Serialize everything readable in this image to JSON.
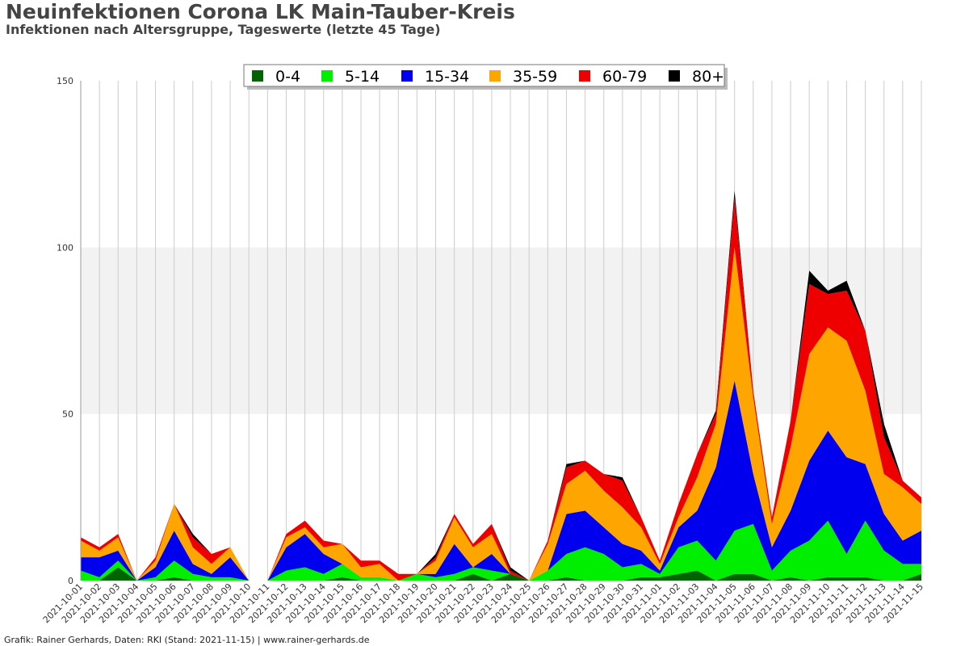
{
  "header": {
    "title": "Neuinfektionen Corona LK Main-Tauber-Kreis",
    "subtitle": "Infektionen nach Altersgruppe, Tageswerte (letzte 45 Tage)"
  },
  "footer": {
    "credit": "Grafik: Rainer Gerhards, Daten: RKI (Stand: 2021-11-15) | www.rainer-gerhards.de"
  },
  "chart_data": {
    "type": "area",
    "stacked": true,
    "ylim": [
      0,
      150
    ],
    "yticks": [
      0,
      50,
      100,
      150
    ],
    "grid": true,
    "legend_position": "top-center",
    "x": [
      "2021-10-01",
      "2021-10-02",
      "2021-10-03",
      "2021-10-04",
      "2021-10-05",
      "2021-10-06",
      "2021-10-07",
      "2021-10-08",
      "2021-10-09",
      "2021-10-10",
      "2021-10-11",
      "2021-10-12",
      "2021-10-13",
      "2021-10-14",
      "2021-10-15",
      "2021-10-16",
      "2021-10-17",
      "2021-10-18",
      "2021-10-19",
      "2021-10-20",
      "2021-10-21",
      "2021-10-22",
      "2021-10-23",
      "2021-10-24",
      "2021-10-25",
      "2021-10-26",
      "2021-10-27",
      "2021-10-28",
      "2021-10-29",
      "2021-10-30",
      "2021-10-31",
      "2021-11-01",
      "2021-11-02",
      "2021-11-03",
      "2021-11-04",
      "2021-11-05",
      "2021-11-06",
      "2021-11-07",
      "2021-11-08",
      "2021-11-09",
      "2021-11-10",
      "2021-11-11",
      "2021-11-12",
      "2021-11-13",
      "2021-11-14",
      "2021-11-15"
    ],
    "series": [
      {
        "name": "0-4",
        "color": "#006400",
        "values": [
          0,
          0,
          4,
          0,
          0,
          1,
          0,
          0,
          0,
          0,
          0,
          0,
          0,
          0,
          1,
          0,
          0,
          0,
          0,
          0,
          0,
          2,
          0,
          2,
          0,
          0,
          1,
          0,
          0,
          0,
          1,
          1,
          2,
          3,
          0,
          2,
          2,
          0,
          1,
          0,
          1,
          1,
          1,
          0,
          0,
          2
        ]
      },
      {
        "name": "5-14",
        "color": "#00ee00",
        "values": [
          3,
          1,
          2,
          0,
          1,
          5,
          2,
          1,
          1,
          0,
          0,
          3,
          4,
          2,
          4,
          1,
          1,
          0,
          2,
          1,
          2,
          2,
          3,
          0,
          0,
          3,
          7,
          10,
          8,
          4,
          4,
          1,
          8,
          9,
          6,
          13,
          15,
          3,
          8,
          12,
          17,
          7,
          17,
          9,
          5,
          3
        ]
      },
      {
        "name": "15-34",
        "color": "#0000ee",
        "values": [
          4,
          6,
          3,
          0,
          3,
          9,
          3,
          1,
          6,
          0,
          0,
          7,
          10,
          6,
          0,
          0,
          0,
          0,
          0,
          1,
          9,
          0,
          5,
          0,
          0,
          0,
          12,
          11,
          8,
          7,
          4,
          1,
          6,
          9,
          28,
          45,
          15,
          7,
          12,
          24,
          27,
          29,
          17,
          11,
          7,
          10
        ]
      },
      {
        "name": "35-59",
        "color": "#ffa500",
        "values": [
          5,
          2,
          4,
          0,
          2,
          8,
          5,
          3,
          3,
          0,
          0,
          3,
          2,
          2,
          6,
          3,
          4,
          0,
          0,
          4,
          8,
          6,
          6,
          0,
          0,
          8,
          9,
          12,
          11,
          11,
          7,
          2,
          3,
          10,
          13,
          40,
          23,
          7,
          19,
          32,
          31,
          35,
          22,
          12,
          16,
          8
        ]
      },
      {
        "name": "60-79",
        "color": "#ee0000",
        "values": [
          1,
          1,
          1,
          0,
          1,
          0,
          3,
          3,
          0,
          0,
          0,
          1,
          2,
          2,
          0,
          2,
          1,
          2,
          0,
          1,
          1,
          1,
          3,
          1,
          0,
          1,
          5,
          3,
          5,
          8,
          3,
          1,
          4,
          7,
          3,
          15,
          2,
          2,
          8,
          21,
          10,
          15,
          18,
          11,
          2,
          2
        ]
      },
      {
        "name": "80+",
        "color": "#000000",
        "values": [
          0,
          0,
          0,
          0,
          0,
          0,
          1,
          0,
          0,
          0,
          0,
          0,
          0,
          0,
          0,
          0,
          0,
          0,
          0,
          1,
          0,
          0,
          0,
          1,
          0,
          0,
          1,
          0,
          0,
          1,
          0,
          0,
          0,
          0,
          1,
          2,
          0,
          0,
          0,
          4,
          1,
          3,
          0,
          4,
          0,
          0
        ]
      }
    ]
  }
}
